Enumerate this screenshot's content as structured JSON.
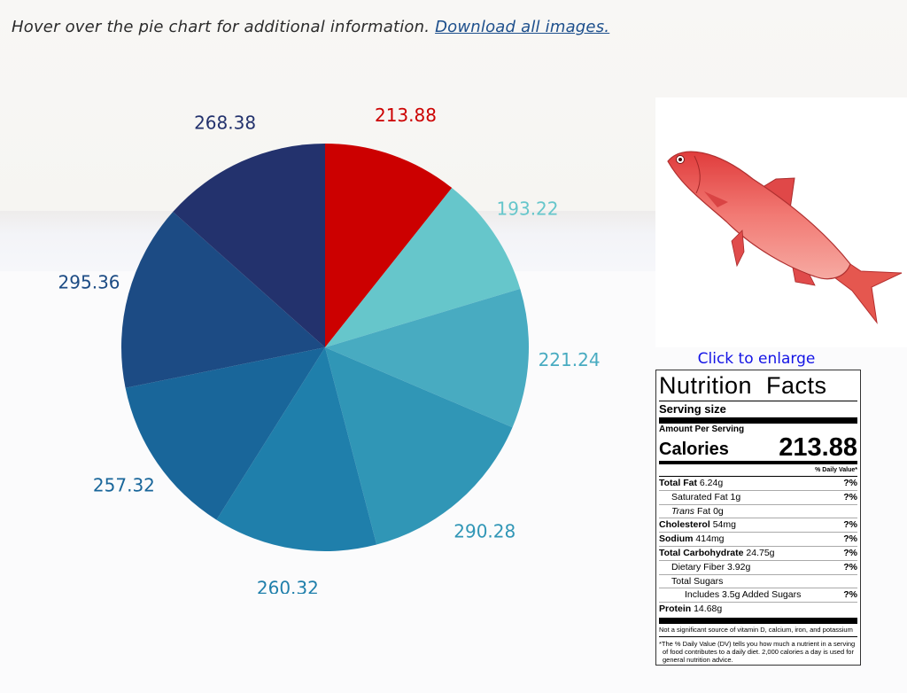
{
  "intro": {
    "text": "Hover over the pie chart for additional information.",
    "link": "Download all images."
  },
  "chart_data": {
    "type": "pie",
    "values": [
      213.88,
      193.22,
      221.24,
      290.28,
      260.32,
      257.32,
      295.36,
      268.38
    ],
    "labels": [
      "213.88",
      "193.22",
      "221.24",
      "290.28",
      "260.32",
      "257.32",
      "295.36",
      "268.38"
    ],
    "colors": [
      "#cc0000",
      "#66c6cb",
      "#48abc1",
      "#3096b6",
      "#1f7fab",
      "#19669a",
      "#1c4b84",
      "#23326d"
    ],
    "start": "12 o'clock",
    "direction": "clockwise"
  },
  "image": {
    "enlarge_label": "Click to enlarge"
  },
  "nutrition": {
    "title": "Nutrition Facts",
    "serving_size": "Serving size",
    "amount_per_serving": "Amount Per Serving",
    "calories_label": "Calories",
    "calories": "213.88",
    "daily_value_header": "% Daily Value*",
    "rows": [
      {
        "name": "Total Fat",
        "amount": "6.24g",
        "bold": true,
        "pct": "?%"
      },
      {
        "name": "Saturated Fat",
        "amount": "1g",
        "bold": false,
        "pct": "?%"
      },
      {
        "name": "Trans",
        "name_rest": "Fat",
        "amount": "0g",
        "bold": false,
        "pct": ""
      },
      {
        "name": "Cholesterol",
        "amount": "54mg",
        "bold": true,
        "pct": "?%"
      },
      {
        "name": "Sodium",
        "amount": "414mg",
        "bold": true,
        "pct": "?%"
      },
      {
        "name": "Total Carbohydrate",
        "amount": "24.75g",
        "bold": true,
        "pct": "?%"
      },
      {
        "name": "Dietary Fiber",
        "amount": "3.92g",
        "bold": false,
        "pct": "?%"
      },
      {
        "name": "Total Sugars",
        "amount": "",
        "bold": false,
        "pct": ""
      },
      {
        "name": "Includes 3.5g Added Sugars",
        "amount": "",
        "bold": false,
        "pct": "?%"
      },
      {
        "name": "Protein",
        "amount": "14.68g",
        "bold": true,
        "pct": ""
      }
    ],
    "note": "Not a significant source of vitamin D, calcium, iron, and potassium",
    "footnote": "*The % Daily Value (DV) tells you how much a nutrient in a serving of food contributes to a daily diet. 2,000 calories a day is used for general nutrition advice."
  }
}
